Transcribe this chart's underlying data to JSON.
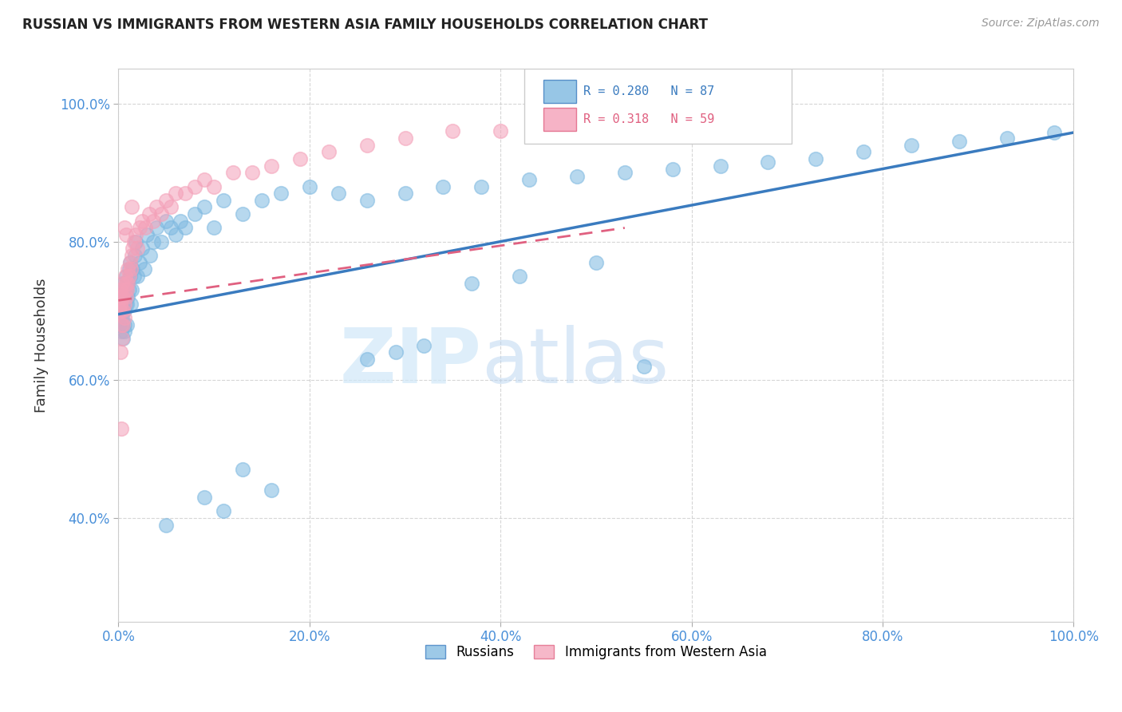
{
  "title": "RUSSIAN VS IMMIGRANTS FROM WESTERN ASIA FAMILY HOUSEHOLDS CORRELATION CHART",
  "source": "Source: ZipAtlas.com",
  "ylabel": "Family Households",
  "watermark": "ZIPatlas",
  "blue_color": "#7db8e0",
  "pink_color": "#f4a0b8",
  "blue_line_color": "#3a7bbf",
  "pink_line_color": "#e06080",
  "grid_color": "#cccccc",
  "background": "#ffffff",
  "blue_scatter_x": [
    0.001,
    0.001,
    0.002,
    0.002,
    0.002,
    0.003,
    0.003,
    0.003,
    0.004,
    0.004,
    0.004,
    0.005,
    0.005,
    0.005,
    0.005,
    0.006,
    0.006,
    0.006,
    0.007,
    0.007,
    0.008,
    0.008,
    0.009,
    0.009,
    0.01,
    0.01,
    0.011,
    0.011,
    0.012,
    0.012,
    0.013,
    0.014,
    0.015,
    0.016,
    0.017,
    0.018,
    0.02,
    0.022,
    0.025,
    0.027,
    0.03,
    0.033,
    0.036,
    0.04,
    0.045,
    0.05,
    0.055,
    0.06,
    0.065,
    0.07,
    0.08,
    0.09,
    0.1,
    0.11,
    0.13,
    0.15,
    0.17,
    0.2,
    0.23,
    0.26,
    0.3,
    0.34,
    0.38,
    0.43,
    0.48,
    0.53,
    0.58,
    0.63,
    0.68,
    0.73,
    0.78,
    0.83,
    0.88,
    0.93,
    0.98,
    0.42,
    0.37,
    0.5,
    0.55,
    0.29,
    0.32,
    0.26,
    0.13,
    0.16,
    0.09,
    0.11,
    0.05
  ],
  "blue_scatter_y": [
    0.7,
    0.68,
    0.71,
    0.69,
    0.72,
    0.67,
    0.7,
    0.72,
    0.68,
    0.71,
    0.69,
    0.66,
    0.7,
    0.72,
    0.74,
    0.67,
    0.7,
    0.68,
    0.72,
    0.71,
    0.75,
    0.73,
    0.68,
    0.71,
    0.72,
    0.74,
    0.76,
    0.73,
    0.75,
    0.77,
    0.71,
    0.73,
    0.76,
    0.75,
    0.78,
    0.8,
    0.75,
    0.77,
    0.79,
    0.76,
    0.81,
    0.78,
    0.8,
    0.82,
    0.8,
    0.83,
    0.82,
    0.81,
    0.83,
    0.82,
    0.84,
    0.85,
    0.82,
    0.86,
    0.84,
    0.86,
    0.87,
    0.88,
    0.87,
    0.86,
    0.87,
    0.88,
    0.88,
    0.89,
    0.895,
    0.9,
    0.905,
    0.91,
    0.915,
    0.92,
    0.93,
    0.94,
    0.945,
    0.95,
    0.958,
    0.75,
    0.74,
    0.77,
    0.62,
    0.64,
    0.65,
    0.63,
    0.47,
    0.44,
    0.43,
    0.41,
    0.39
  ],
  "pink_scatter_x": [
    0.001,
    0.001,
    0.002,
    0.002,
    0.003,
    0.003,
    0.004,
    0.004,
    0.005,
    0.005,
    0.005,
    0.006,
    0.006,
    0.007,
    0.007,
    0.008,
    0.008,
    0.009,
    0.01,
    0.01,
    0.011,
    0.012,
    0.013,
    0.014,
    0.015,
    0.016,
    0.018,
    0.02,
    0.022,
    0.025,
    0.028,
    0.032,
    0.036,
    0.04,
    0.045,
    0.05,
    0.055,
    0.06,
    0.07,
    0.08,
    0.09,
    0.1,
    0.12,
    0.14,
    0.16,
    0.19,
    0.22,
    0.26,
    0.3,
    0.35,
    0.4,
    0.45,
    0.5,
    0.014,
    0.008,
    0.006,
    0.003,
    0.004,
    0.002
  ],
  "pink_scatter_y": [
    0.7,
    0.72,
    0.71,
    0.73,
    0.68,
    0.7,
    0.72,
    0.74,
    0.68,
    0.7,
    0.72,
    0.69,
    0.71,
    0.73,
    0.75,
    0.72,
    0.74,
    0.73,
    0.74,
    0.76,
    0.75,
    0.77,
    0.76,
    0.78,
    0.79,
    0.8,
    0.81,
    0.79,
    0.82,
    0.83,
    0.82,
    0.84,
    0.83,
    0.85,
    0.84,
    0.86,
    0.85,
    0.87,
    0.87,
    0.88,
    0.89,
    0.88,
    0.9,
    0.9,
    0.91,
    0.92,
    0.93,
    0.94,
    0.95,
    0.96,
    0.96,
    0.97,
    0.975,
    0.85,
    0.81,
    0.82,
    0.53,
    0.66,
    0.64
  ],
  "xlim": [
    0.0,
    1.0
  ],
  "ylim": [
    0.25,
    1.05
  ],
  "ytick_labels": [
    "40.0%",
    "60.0%",
    "80.0%",
    "100.0%"
  ],
  "ytick_values": [
    0.4,
    0.6,
    0.8,
    1.0
  ],
  "xtick_labels": [
    "0.0%",
    "20.0%",
    "40.0%",
    "60.0%",
    "80.0%",
    "100.0%"
  ],
  "xtick_values": [
    0.0,
    0.2,
    0.4,
    0.6,
    0.8,
    1.0
  ],
  "blue_line_x": [
    0.0,
    1.0
  ],
  "blue_line_y": [
    0.695,
    0.958
  ],
  "pink_line_x": [
    0.0,
    0.53
  ],
  "pink_line_y": [
    0.715,
    0.82
  ]
}
